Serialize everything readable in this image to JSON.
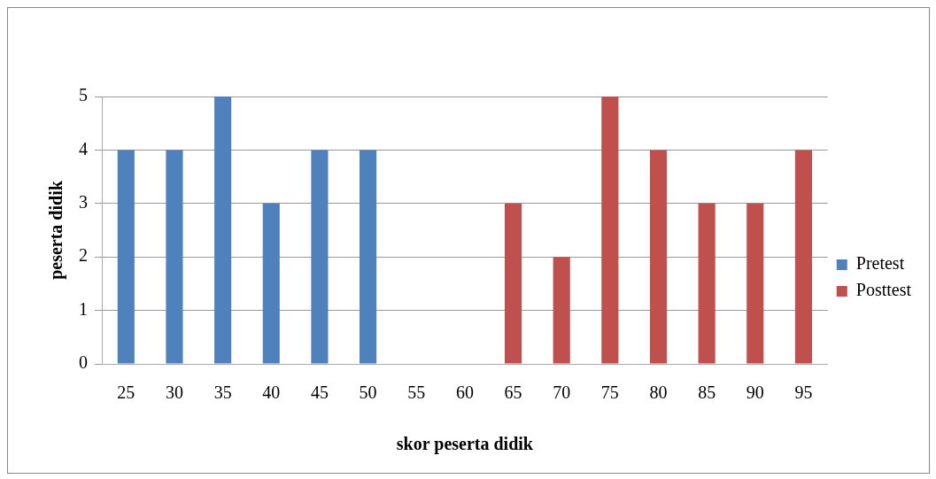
{
  "chart_data": {
    "type": "bar",
    "xlabel": "skor peserta didik",
    "ylabel": "peserta didik",
    "categories": [
      "25",
      "30",
      "35",
      "40",
      "45",
      "50",
      "55",
      "60",
      "65",
      "70",
      "75",
      "80",
      "85",
      "90",
      "95"
    ],
    "series": [
      {
        "name": "Pretest",
        "color": "#4f81bd",
        "values": [
          4,
          4,
          5,
          3,
          4,
          4,
          null,
          null,
          null,
          null,
          null,
          null,
          null,
          null,
          null
        ]
      },
      {
        "name": "Posttest",
        "color": "#c0504d",
        "values": [
          null,
          null,
          null,
          null,
          null,
          null,
          null,
          null,
          3,
          2,
          5,
          4,
          3,
          3,
          4
        ]
      }
    ],
    "ylim": [
      0,
      5
    ],
    "yticks": [
      0,
      1,
      2,
      3,
      4,
      5
    ],
    "grid": "y",
    "legend": "right"
  }
}
